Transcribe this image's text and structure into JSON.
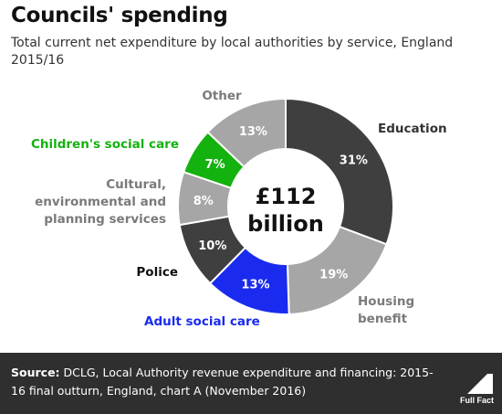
{
  "chart_data": {
    "type": "pie",
    "title": "Councils' spending",
    "subtitle": "Total current net expenditure by local authorities by service, England 2015/16",
    "center_label": [
      "£112",
      "billion"
    ],
    "slices": [
      {
        "label": [
          "Education"
        ],
        "value": 31,
        "value_label": "31%",
        "color": "#3f3f3f",
        "label_color": "#333333"
      },
      {
        "label": [
          "Housing",
          "benefit"
        ],
        "value": 19,
        "value_label": "19%",
        "color": "#a6a6a6",
        "label_color": "#7a7a7a"
      },
      {
        "label": [
          "Adult social care"
        ],
        "value": 13,
        "value_label": "13%",
        "color": "#1a2bef",
        "label_color": "#1a2bef"
      },
      {
        "label": [
          "Police"
        ],
        "value": 10,
        "value_label": "10%",
        "color": "#3f3f3f",
        "label_color": "#111111"
      },
      {
        "label": [
          "Cultural,",
          "environmental and",
          "planning services"
        ],
        "value": 8,
        "value_label": "8%",
        "color": "#a6a6a6",
        "label_color": "#7a7a7a"
      },
      {
        "label": [
          "Children's social care"
        ],
        "value": 7,
        "value_label": "7%",
        "color": "#14b20f",
        "label_color": "#14b20f"
      },
      {
        "label": [
          "Other"
        ],
        "value": 13,
        "value_label": "13%",
        "color": "#a6a6a6",
        "label_color": "#7a7a7a"
      }
    ]
  },
  "footer": {
    "source_prefix": "Source:",
    "source_text": " DCLG, Local Authority revenue expenditure and financing: 2015-16 final outturn, England, chart A (November 2016)",
    "logo_text": "Full Fact"
  }
}
